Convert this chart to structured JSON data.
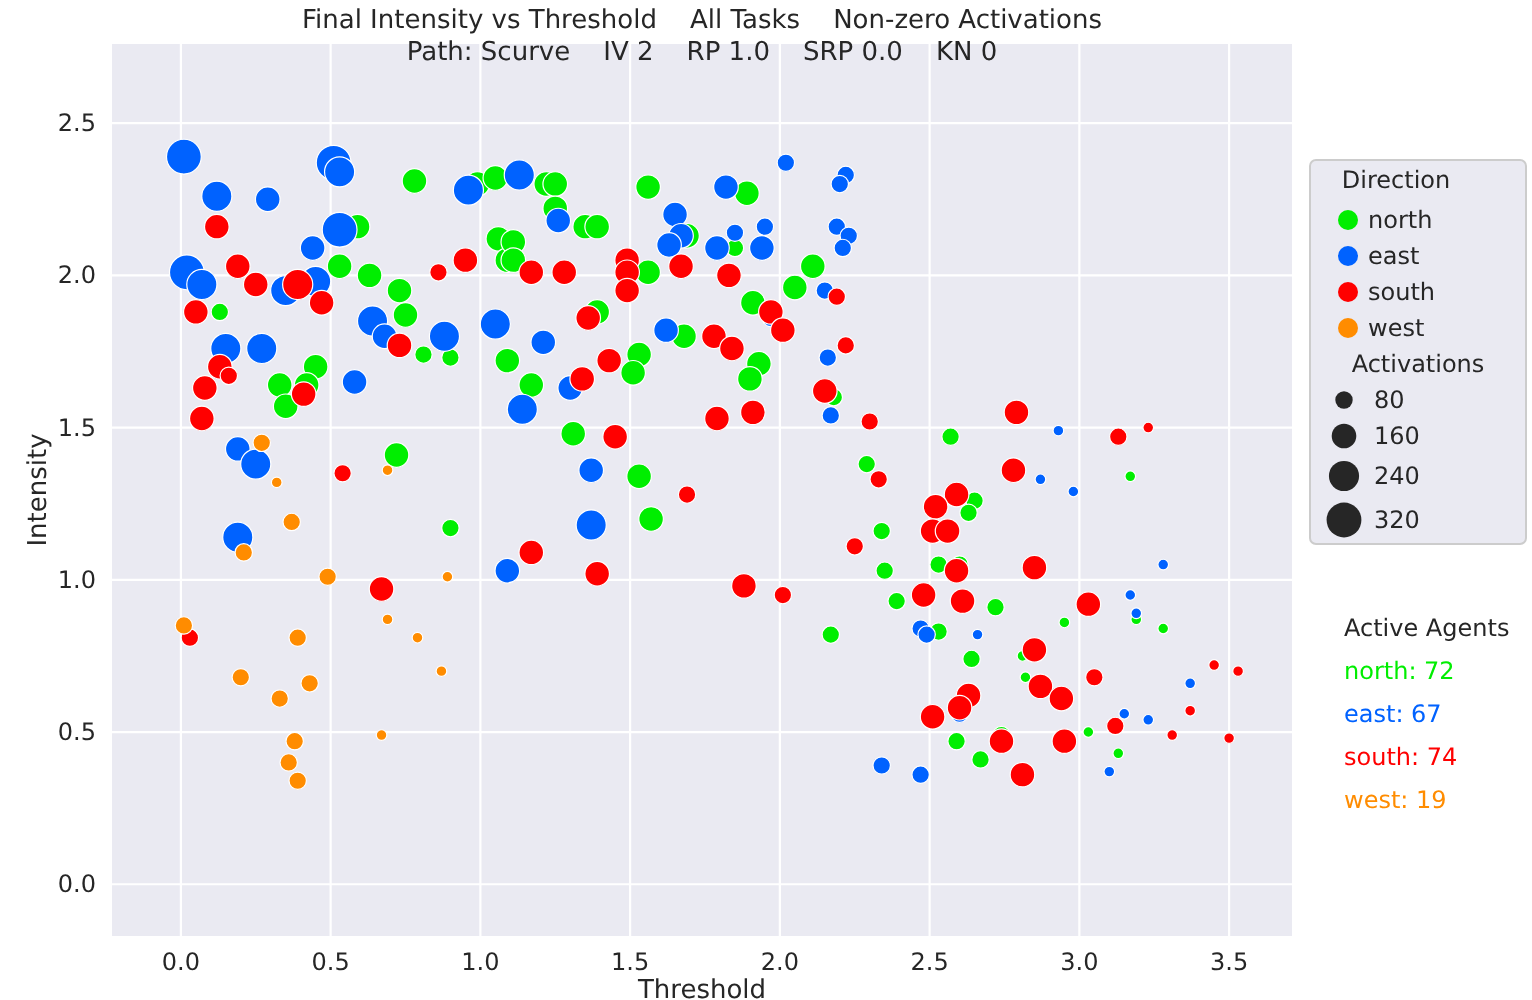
{
  "chart_data": {
    "type": "bubble",
    "title": "Final Intensity vs Threshold    All Tasks    Non-zero Activations",
    "subtitle": "Path: Scurve    IV 2    RP 1.0    SRP 0.0    KN 0",
    "xlabel": "Threshold",
    "ylabel": "Intensity",
    "legend_title": "Direction",
    "legend": "right",
    "grid": true,
    "size_legend": [
      80,
      160,
      240,
      320
    ],
    "xlim": [
      -0.23,
      3.71
    ],
    "ylim": [
      -0.17,
      2.76
    ],
    "xticks": [
      {
        "value": 0,
        "label": "0.0"
      },
      {
        "value": 0.5,
        "label": "0.5"
      },
      {
        "value": 1,
        "label": "1.0"
      },
      {
        "value": 1.5,
        "label": "1.5"
      },
      {
        "value": 2,
        "label": "2.0"
      },
      {
        "value": 2.5,
        "label": "2.5"
      },
      {
        "value": 3,
        "label": "3.0"
      },
      {
        "value": 3.5,
        "label": "3.5"
      }
    ],
    "yticks": [
      {
        "value": 0,
        "label": "0.0"
      },
      {
        "value": 0.5,
        "label": "0.5"
      },
      {
        "value": 1,
        "label": "1.0"
      },
      {
        "value": 1.5,
        "label": "1.5"
      },
      {
        "value": 2,
        "label": "2.0"
      },
      {
        "value": 2.5,
        "label": "2.5"
      }
    ],
    "annotations": [
      "Activations",
      "Active Agents",
      "north: 72",
      "east: 67",
      "south: 74",
      "west: 19"
    ],
    "series": [
      {
        "name": "north",
        "color": "#00ee00",
        "x": [
          0.78,
          0.99,
          1.05,
          0.59,
          0.53,
          0.63,
          0.73,
          0.75,
          0.13,
          0.45,
          0.33,
          0.35,
          0.42,
          0.81,
          0.9,
          1.06,
          1.09,
          1.09,
          0.72,
          0.9,
          1.22,
          1.25,
          1.25,
          1.35,
          1.39,
          1.11,
          1.11,
          1.56,
          1.89,
          1.69,
          1.85,
          1.56,
          1.39,
          1.53,
          1.51,
          1.17,
          1.68,
          1.93,
          1.9,
          1.91,
          2.05,
          2.11,
          2.18,
          1.31,
          1.53,
          2.29,
          1.57,
          2.34,
          2.35,
          2.17,
          2.65,
          2.63,
          2.53,
          2.6,
          2.39,
          2.72,
          2.53,
          2.64,
          2.81,
          2.82,
          2.95,
          3.19,
          3.28,
          2.59,
          2.74,
          2.67,
          3.03,
          3.13,
          2.57,
          3.17
        ],
        "values": [
          2.31,
          2.3,
          2.32,
          2.16,
          2.03,
          2.0,
          1.95,
          1.87,
          1.88,
          1.7,
          1.64,
          1.57,
          1.64,
          1.74,
          1.73,
          2.12,
          2.05,
          1.72,
          1.41,
          1.17,
          2.3,
          2.3,
          2.22,
          2.16,
          2.16,
          2.11,
          2.05,
          2.29,
          2.27,
          2.13,
          2.09,
          2.01,
          1.88,
          1.74,
          1.68,
          1.64,
          1.8,
          1.71,
          1.66,
          1.91,
          1.96,
          2.03,
          1.6,
          1.48,
          1.34,
          1.38,
          1.2,
          1.16,
          1.03,
          0.82,
          1.26,
          1.22,
          1.05,
          1.05,
          0.93,
          0.91,
          0.83,
          0.74,
          0.75,
          0.68,
          0.86,
          0.87,
          0.84,
          0.47,
          0.49,
          0.41,
          0.5,
          0.43,
          1.47,
          1.34
        ],
        "sizes": [
          160,
          160,
          160,
          160,
          160,
          160,
          160,
          160,
          80,
          160,
          160,
          160,
          160,
          80,
          80,
          160,
          160,
          160,
          160,
          80,
          160,
          160,
          160,
          160,
          160,
          160,
          160,
          160,
          160,
          160,
          80,
          160,
          160,
          160,
          160,
          160,
          160,
          160,
          160,
          160,
          160,
          160,
          80,
          160,
          160,
          80,
          160,
          80,
          80,
          80,
          80,
          80,
          80,
          80,
          80,
          80,
          80,
          80,
          30,
          30,
          30,
          30,
          30,
          80,
          80,
          80,
          30,
          30,
          80,
          30
        ]
      },
      {
        "name": "east",
        "color": "#0062ff",
        "x": [
          0.01,
          0.12,
          0.29,
          0.51,
          0.53,
          0.53,
          0.44,
          0.02,
          0.07,
          0.35,
          0.45,
          0.64,
          0.68,
          0.88,
          1.05,
          0.96,
          0.15,
          0.27,
          0.58,
          0.19,
          0.25,
          0.19,
          1.09,
          1.13,
          1.26,
          1.65,
          1.67,
          1.63,
          1.62,
          1.82,
          1.85,
          1.79,
          1.95,
          1.94,
          2.02,
          2.22,
          2.2,
          2.19,
          2.23,
          2.21,
          2.15,
          1.97,
          2.16,
          2.17,
          1.3,
          1.14,
          1.37,
          1.21,
          1.37,
          2.34,
          2.93,
          2.87,
          2.98,
          3.28,
          3.17,
          3.19,
          2.47,
          2.49,
          2.66,
          3.37,
          3.15,
          3.23,
          2.6,
          2.47,
          3.1
        ],
        "values": [
          2.39,
          2.26,
          2.25,
          2.37,
          2.34,
          2.15,
          2.09,
          2.01,
          1.97,
          1.95,
          1.98,
          1.85,
          1.8,
          1.8,
          1.84,
          2.28,
          1.76,
          1.76,
          1.65,
          1.43,
          1.38,
          1.14,
          1.03,
          2.33,
          2.18,
          2.2,
          2.13,
          2.1,
          1.82,
          2.29,
          2.14,
          2.09,
          2.16,
          2.09,
          2.37,
          2.33,
          2.3,
          2.16,
          2.13,
          2.09,
          1.95,
          1.86,
          1.73,
          1.54,
          1.63,
          1.56,
          1.36,
          1.78,
          1.18,
          0.39,
          1.49,
          1.33,
          1.29,
          1.05,
          0.95,
          0.89,
          0.84,
          0.82,
          0.82,
          0.66,
          0.56,
          0.54,
          0.56,
          0.36,
          0.37
        ],
        "sizes": [
          320,
          240,
          160,
          320,
          240,
          320,
          160,
          320,
          240,
          240,
          240,
          240,
          160,
          240,
          240,
          240,
          240,
          240,
          160,
          160,
          240,
          240,
          160,
          240,
          160,
          160,
          160,
          160,
          160,
          160,
          80,
          160,
          80,
          160,
          80,
          80,
          80,
          80,
          80,
          80,
          80,
          80,
          80,
          80,
          160,
          240,
          160,
          160,
          240,
          80,
          30,
          30,
          30,
          30,
          30,
          30,
          80,
          80,
          30,
          30,
          30,
          30,
          80,
          80,
          30
        ]
      },
      {
        "name": "south",
        "color": "#ff0000",
        "x": [
          0.12,
          0.19,
          0.25,
          0.39,
          0.47,
          0.05,
          0.86,
          0.95,
          0.73,
          0.13,
          0.16,
          0.08,
          0.41,
          0.07,
          0.54,
          0.67,
          0.03,
          1.17,
          1.28,
          1.49,
          1.49,
          1.49,
          1.67,
          1.83,
          1.36,
          1.43,
          1.34,
          1.78,
          1.84,
          1.97,
          2.01,
          2.19,
          2.22,
          2.15,
          2.3,
          2.33,
          1.45,
          1.79,
          1.91,
          1.69,
          1.17,
          1.39,
          1.88,
          2.01,
          2.25,
          2.59,
          2.52,
          2.51,
          2.56,
          2.59,
          2.85,
          2.48,
          2.61,
          3.03,
          2.85,
          3.05,
          2.87,
          2.94,
          2.63,
          2.6,
          2.51,
          3.12,
          3.37,
          3.31,
          3.5,
          3.45,
          3.53,
          2.74,
          2.95,
          2.81,
          2.79,
          2.78,
          3.13,
          3.23
        ],
        "values": [
          2.16,
          2.03,
          1.97,
          1.97,
          1.91,
          1.88,
          2.01,
          2.05,
          1.77,
          1.7,
          1.67,
          1.63,
          1.61,
          1.53,
          1.35,
          0.97,
          0.81,
          2.01,
          2.01,
          2.05,
          2.01,
          1.95,
          2.03,
          2.0,
          1.86,
          1.72,
          1.66,
          1.8,
          1.76,
          1.88,
          1.82,
          1.93,
          1.77,
          1.62,
          1.52,
          1.33,
          1.47,
          1.53,
          1.55,
          1.28,
          1.09,
          1.02,
          0.98,
          0.95,
          1.11,
          1.28,
          1.24,
          1.16,
          1.16,
          1.03,
          1.04,
          0.95,
          0.93,
          0.92,
          0.77,
          0.68,
          0.65,
          0.61,
          0.62,
          0.58,
          0.55,
          0.52,
          0.57,
          0.49,
          0.48,
          0.72,
          0.7,
          0.47,
          0.47,
          0.36,
          1.55,
          1.36,
          1.47,
          1.5
        ],
        "sizes": [
          160,
          160,
          160,
          240,
          160,
          160,
          80,
          160,
          160,
          160,
          80,
          160,
          160,
          160,
          80,
          160,
          80,
          160,
          160,
          160,
          160,
          160,
          160,
          160,
          160,
          160,
          160,
          160,
          160,
          160,
          160,
          80,
          80,
          160,
          80,
          80,
          160,
          160,
          160,
          80,
          160,
          160,
          160,
          80,
          80,
          160,
          160,
          160,
          160,
          160,
          160,
          160,
          160,
          160,
          160,
          80,
          160,
          160,
          160,
          160,
          160,
          80,
          30,
          30,
          30,
          30,
          30,
          160,
          160,
          160,
          160,
          160,
          80,
          30
        ]
      },
      {
        "name": "west",
        "color": "#ff8c00",
        "x": [
          0.27,
          0.32,
          0.69,
          0.37,
          0.21,
          0.49,
          0.89,
          0.01,
          0.69,
          0.39,
          0.79,
          0.2,
          0.43,
          0.33,
          0.87,
          0.38,
          0.67,
          0.36,
          0.39
        ],
        "values": [
          1.45,
          1.32,
          1.36,
          1.19,
          1.09,
          1.01,
          1.01,
          0.85,
          0.87,
          0.81,
          0.81,
          0.68,
          0.66,
          0.61,
          0.7,
          0.47,
          0.49,
          0.4,
          0.34
        ],
        "sizes": [
          80,
          30,
          30,
          80,
          80,
          80,
          30,
          80,
          30,
          80,
          30,
          80,
          80,
          80,
          30,
          80,
          30,
          80,
          80
        ]
      }
    ]
  }
}
